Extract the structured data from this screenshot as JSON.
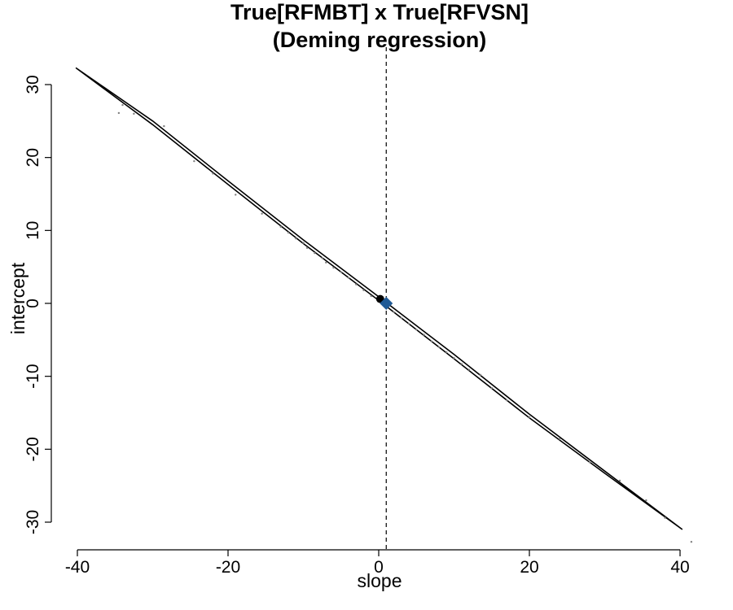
{
  "chart_data": {
    "type": "scatter",
    "title": "True[RFMBT] x True[RFVSN]",
    "subtitle": "(Deming regression)",
    "xlabel": "slope",
    "ylabel": "intercept",
    "xlim": [
      -40,
      40
    ],
    "ylim": [
      -30,
      30
    ],
    "xticks": [
      -40,
      -20,
      0,
      20,
      40
    ],
    "yticks": [
      -30,
      -20,
      -10,
      0,
      10,
      20,
      30
    ],
    "grid": false,
    "reference_line": {
      "x": 1,
      "style": "dashed"
    },
    "ellipse_outline": [
      [
        -40.2,
        32.3
      ],
      [
        -30,
        24.5
      ],
      [
        -20,
        16.3
      ],
      [
        -10,
        8.2
      ],
      [
        0,
        0.4
      ],
      [
        10,
        -7.6
      ],
      [
        20,
        -15.7
      ],
      [
        30,
        -23.3
      ],
      [
        40.3,
        -31.0
      ],
      [
        30,
        -23.0
      ],
      [
        20,
        -15.2
      ],
      [
        10,
        -7.0
      ],
      [
        0,
        0.9
      ],
      [
        -10,
        8.7
      ],
      [
        -20,
        16.8
      ],
      [
        -30,
        25.0
      ],
      [
        -40.2,
        32.3
      ]
    ],
    "points": [
      [
        -34.5,
        26.1
      ],
      [
        -34,
        27.2
      ],
      [
        -32.5,
        26.0
      ],
      [
        -28.5,
        24.3
      ],
      [
        -24.5,
        19.5
      ],
      [
        -22,
        17.8
      ],
      [
        -19,
        14.9
      ],
      [
        -15.5,
        12.3
      ],
      [
        -13,
        10.5
      ],
      [
        -12,
        9.7
      ],
      [
        -11,
        8.9
      ],
      [
        -10,
        8.3
      ],
      [
        -9.5,
        7.6
      ],
      [
        -8.5,
        6.9
      ],
      [
        -7.5,
        6.2
      ],
      [
        -7,
        5.6
      ],
      [
        -6,
        4.9
      ],
      [
        -5,
        4.3
      ],
      [
        -4,
        3.5
      ],
      [
        -3,
        2.6
      ],
      [
        -2,
        1.8
      ],
      [
        -1,
        1.0
      ],
      [
        2,
        -1.2
      ],
      [
        3,
        -2.0
      ],
      [
        4,
        -2.8
      ],
      [
        5,
        -3.6
      ],
      [
        6,
        -4.3
      ],
      [
        7,
        -5.2
      ],
      [
        8,
        -6.0
      ],
      [
        9,
        -6.7
      ],
      [
        10,
        -7.5
      ],
      [
        11,
        -8.3
      ],
      [
        12,
        -9.1
      ],
      [
        13.5,
        -9.8
      ],
      [
        15,
        -11.6
      ],
      [
        17,
        -13.3
      ],
      [
        20,
        -15.6
      ],
      [
        24,
        -18.6
      ],
      [
        28,
        -21.8
      ],
      [
        32,
        -24.3
      ],
      [
        35.5,
        -27.0
      ],
      [
        38,
        -29.4
      ],
      [
        41.5,
        -32.7
      ]
    ],
    "estimate_black": {
      "slope": 0.2,
      "intercept": 0.6
    },
    "estimate_blue": {
      "slope": 1.0,
      "intercept": 0.0
    },
    "colors": {
      "estimate_blue": "#1f5a96",
      "estimate_black": "#000000",
      "points": "#808080"
    }
  }
}
